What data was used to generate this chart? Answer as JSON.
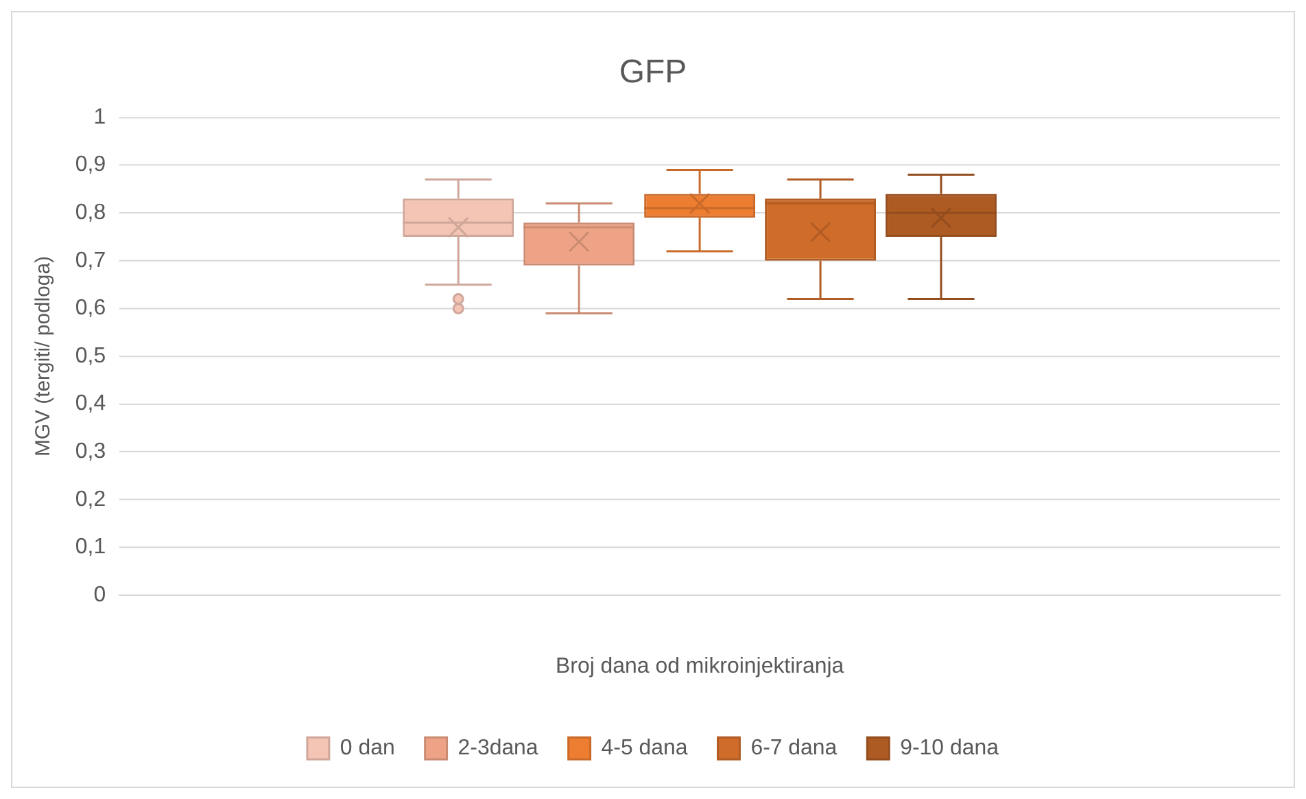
{
  "chart_data": {
    "type": "box",
    "title": "GFP",
    "xlabel": "Broj dana od mikroinjektiranja",
    "ylabel": "MGV (tergiti/ podloga)",
    "categories": [
      null
    ],
    "series": [
      {
        "name": "0 dan",
        "color": "#f4c5b5",
        "boxes": [
          {
            "low": 0.65,
            "q1": 0.75,
            "median": 0.78,
            "q3": 0.83,
            "high": 0.87,
            "mean": 0.77,
            "outliers": [
              0.62,
              0.6
            ]
          }
        ]
      },
      {
        "name": "2-3dana",
        "color": "#eea386",
        "boxes": [
          {
            "low": 0.59,
            "q1": 0.69,
            "median": 0.77,
            "q3": 0.78,
            "high": 0.82,
            "mean": 0.74
          }
        ]
      },
      {
        "name": "4-5 dana",
        "color": "#ed7d31",
        "boxes": [
          {
            "low": 0.72,
            "q1": 0.79,
            "median": 0.81,
            "q3": 0.84,
            "high": 0.89,
            "mean": 0.82
          }
        ]
      },
      {
        "name": "6-7 dana",
        "color": "#d06c2a",
        "boxes": [
          {
            "low": 0.62,
            "q1": 0.7,
            "median": 0.82,
            "q3": 0.83,
            "high": 0.87,
            "mean": 0.76
          }
        ]
      },
      {
        "name": "9-10 dana",
        "color": "#ae5a23",
        "boxes": [
          {
            "low": 0.62,
            "q1": 0.75,
            "median": 0.8,
            "q3": 0.84,
            "high": 0.88,
            "mean": 0.79
          }
        ]
      }
    ],
    "ylim": [
      0,
      1
    ],
    "yticks": [
      0,
      {
        "value": 0.1,
        "label": "0,1"
      },
      {
        "value": 0.2,
        "label": "0,2"
      },
      {
        "value": 0.3,
        "label": "0,3"
      },
      {
        "value": 0.4,
        "label": "0,4"
      },
      {
        "value": 0.5,
        "label": "0,5"
      },
      {
        "value": 0.6,
        "label": "0,6"
      },
      {
        "value": 0.7,
        "label": "0,7"
      },
      {
        "value": 0.8,
        "label": "0,8"
      },
      {
        "value": 0.9,
        "label": "0,9"
      },
      1
    ],
    "grid": "y",
    "legend": "bottom"
  }
}
